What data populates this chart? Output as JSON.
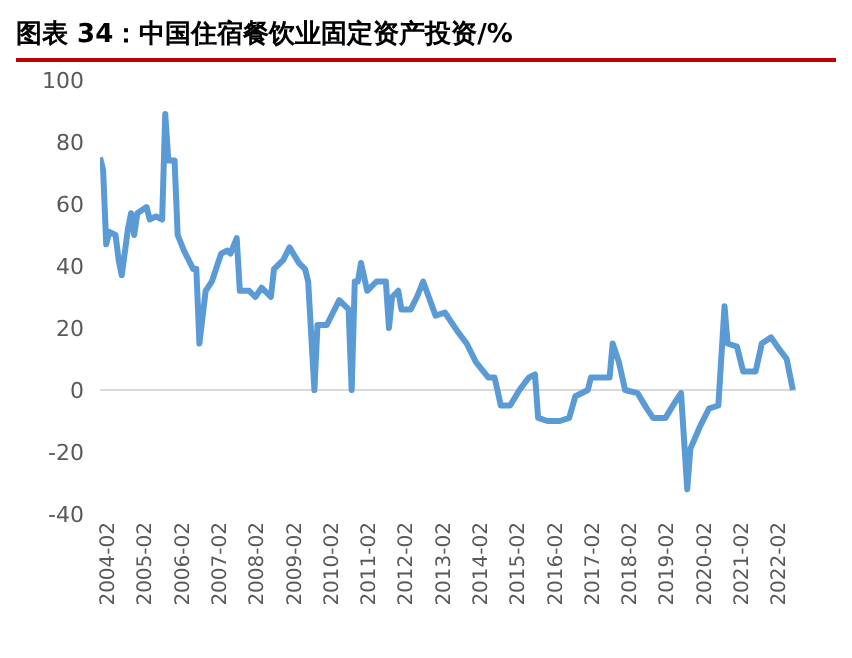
{
  "chart_data": {
    "type": "line",
    "title": "图表 34：中国住宿餐饮业固定资产投资/%",
    "x": [
      "2004-02",
      "2004-03",
      "2004-04",
      "2004-05",
      "2004-07",
      "2004-08",
      "2004-09",
      "2004-11",
      "2004-12",
      "2005-01",
      "2005-02",
      "2005-05",
      "2005-06",
      "2005-08",
      "2005-10",
      "2005-11",
      "2005-12",
      "2006-02",
      "2006-03",
      "2006-05",
      "2006-08",
      "2006-09",
      "2006-10",
      "2006-12",
      "2007-02",
      "2007-05",
      "2007-07",
      "2007-08",
      "2007-10",
      "2007-11",
      "2008-02",
      "2008-04",
      "2008-06",
      "2008-09",
      "2008-10",
      "2009-01",
      "2009-03",
      "2009-06",
      "2009-08",
      "2009-09",
      "2009-11",
      "2009-12",
      "2010-03",
      "2010-05",
      "2010-07",
      "2010-10",
      "2010-11",
      "2010-12",
      "2011-01",
      "2011-02",
      "2011-04",
      "2011-07",
      "2011-10",
      "2011-11",
      "2011-12",
      "2012-02",
      "2012-03",
      "2012-06",
      "2012-08",
      "2012-10",
      "2013-02",
      "2013-05",
      "2013-09",
      "2013-12",
      "2014-03",
      "2014-07",
      "2014-09",
      "2014-11",
      "2015-02",
      "2015-05",
      "2015-08",
      "2015-10",
      "2015-11",
      "2016-02",
      "2016-06",
      "2016-09",
      "2016-11",
      "2017-03",
      "2017-04",
      "2017-07",
      "2017-10",
      "2017-11",
      "2018-01",
      "2018-03",
      "2018-07",
      "2018-10",
      "2018-12",
      "2019-04",
      "2019-07",
      "2019-09",
      "2019-11",
      "2019-12",
      "2020-03",
      "2020-06",
      "2020-09",
      "2020-11",
      "2020-12",
      "2021-03",
      "2021-05",
      "2021-09",
      "2021-11",
      "2022-02",
      "2022-04",
      "2022-07",
      "2022-09"
    ],
    "series": [
      {
        "color": "#5b9bd5",
        "values": [
          75,
          71,
          47,
          51,
          50,
          42,
          37,
          52,
          57,
          50,
          57,
          59,
          55,
          56,
          55,
          89,
          74,
          74,
          50,
          45,
          39,
          39,
          15,
          32,
          35,
          44,
          45,
          44,
          49,
          32,
          32,
          30,
          33,
          30,
          39,
          42,
          46,
          41,
          39,
          35,
          0,
          21,
          21,
          25,
          29,
          26,
          0,
          35,
          35,
          41,
          32,
          35,
          35,
          20,
          30,
          32,
          26,
          26,
          30,
          35,
          24,
          25,
          19,
          15,
          9,
          4,
          4,
          -5,
          -5,
          0,
          4,
          5,
          -9,
          -10,
          -10,
          -9,
          -2,
          0,
          4,
          4,
          4,
          15,
          9,
          0,
          -1,
          -6,
          -9,
          -9,
          -4,
          -1,
          -32,
          -19,
          -12,
          -6,
          -5,
          27,
          15,
          14,
          6,
          6,
          15,
          17,
          14,
          10,
          0
        ]
      }
    ],
    "xlim": [
      "2004-02",
      "2022-10"
    ],
    "xticks": [
      "2004-02",
      "2005-02",
      "2006-02",
      "2007-02",
      "2008-02",
      "2009-02",
      "2010-02",
      "2011-02",
      "2012-02",
      "2013-02",
      "2014-02",
      "2015-02",
      "2016-02",
      "2017-02",
      "2018-02",
      "2019-02",
      "2020-02",
      "2021-02",
      "2022-02"
    ],
    "ylim": [
      -40,
      100
    ],
    "yticks": [
      -40,
      -20,
      0,
      20,
      40,
      60,
      80,
      100
    ],
    "ref_lines": [
      {
        "axis": "y",
        "value": 0,
        "color": "#d9d9d9"
      }
    ],
    "grid": false,
    "legend": false,
    "marker": "none",
    "line_style": "solid"
  }
}
